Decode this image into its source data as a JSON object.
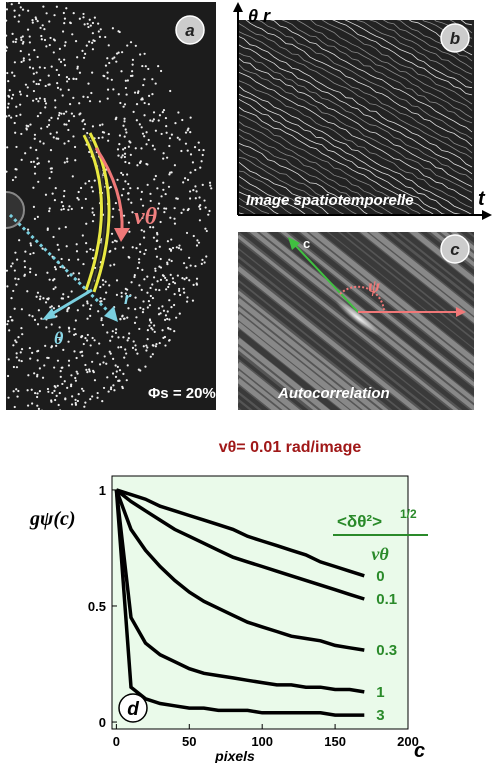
{
  "panel_a": {
    "letter": "a",
    "velocity": "vθ",
    "r": "r",
    "theta": "θ",
    "fraction": "Φs = 20%"
  },
  "panel_b": {
    "letter": "b",
    "y_axis": "θ r",
    "x_axis": "t",
    "caption": "Image spatiotemporelle"
  },
  "panel_c": {
    "letter": "c",
    "axis": "c",
    "angle": "ψ",
    "caption": "Autocorrelation"
  },
  "chart_data": {
    "type": "line",
    "title": "vθ= 0.01 rad/image",
    "panel_letter": "d",
    "y_label": "gψ(c)",
    "x_label": "pixels",
    "x_symbol": "c",
    "legend_title": {
      "numerator": "<δθ²>",
      "exponent": "1/2",
      "denominator": "vθ"
    },
    "x": [
      0,
      10,
      20,
      30,
      40,
      50,
      60,
      70,
      80,
      90,
      100,
      110,
      120,
      130,
      140,
      150,
      160,
      170
    ],
    "series": [
      {
        "name": "0",
        "color": "#000000",
        "values": [
          1,
          0.98,
          0.96,
          0.93,
          0.91,
          0.89,
          0.87,
          0.85,
          0.83,
          0.8,
          0.78,
          0.76,
          0.74,
          0.72,
          0.69,
          0.67,
          0.65,
          0.63
        ]
      },
      {
        "name": "0.1",
        "color": "#000000",
        "values": [
          1,
          0.95,
          0.91,
          0.87,
          0.83,
          0.8,
          0.77,
          0.74,
          0.71,
          0.69,
          0.67,
          0.65,
          0.63,
          0.61,
          0.59,
          0.57,
          0.55,
          0.53
        ]
      },
      {
        "name": "0.3",
        "color": "#000000",
        "values": [
          1,
          0.83,
          0.74,
          0.67,
          0.61,
          0.56,
          0.52,
          0.49,
          0.46,
          0.43,
          0.41,
          0.39,
          0.37,
          0.36,
          0.35,
          0.33,
          0.32,
          0.31
        ]
      },
      {
        "name": "1",
        "color": "#000000",
        "values": [
          1,
          0.45,
          0.34,
          0.29,
          0.26,
          0.23,
          0.21,
          0.2,
          0.19,
          0.18,
          0.17,
          0.16,
          0.16,
          0.15,
          0.15,
          0.14,
          0.14,
          0.13
        ]
      },
      {
        "name": "3",
        "color": "#000000",
        "values": [
          1,
          0.15,
          0.1,
          0.08,
          0.07,
          0.06,
          0.06,
          0.05,
          0.05,
          0.05,
          0.04,
          0.04,
          0.04,
          0.04,
          0.04,
          0.03,
          0.03,
          0.03
        ]
      }
    ],
    "xlim": [
      -3,
      200
    ],
    "ylim": [
      -0.03,
      1.06
    ],
    "xticks": [
      0,
      50,
      100,
      150,
      200
    ],
    "yticks": [
      0,
      0.5,
      1
    ],
    "background": "#eafaea",
    "label_color": "#2a8a2a",
    "title_color": "#a01818"
  }
}
